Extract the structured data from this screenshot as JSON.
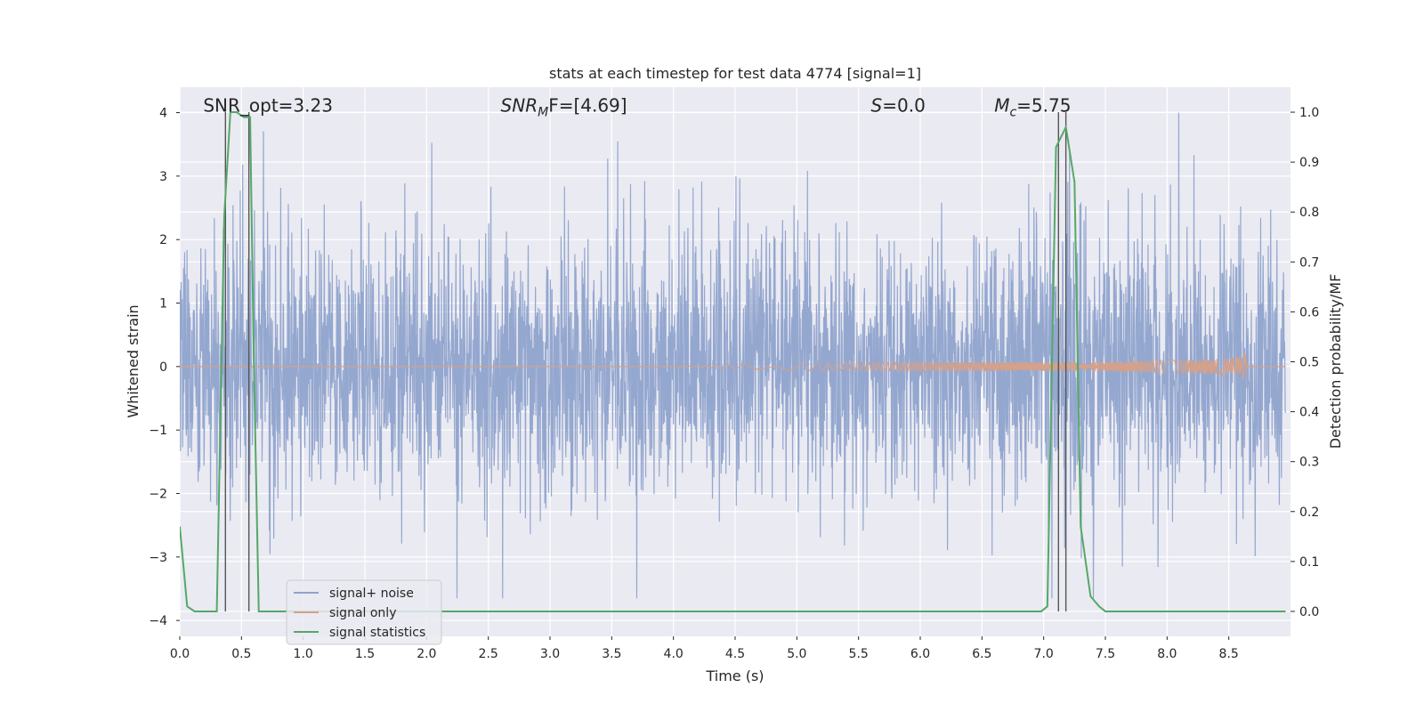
{
  "chart_data": {
    "type": "line",
    "title": "stats at each timestep for test data 4774 [signal=1]",
    "xlabel": "Time (s)",
    "ylabel": "Whitened strain",
    "y2label": "Detection probability/MF",
    "xlim": [
      0.0,
      9.0
    ],
    "ylim": [
      -4.25,
      4.4
    ],
    "y2lim": [
      -0.05,
      1.05
    ],
    "xticks": [
      0.0,
      0.5,
      1.0,
      1.5,
      2.0,
      2.5,
      3.0,
      3.5,
      4.0,
      4.5,
      5.0,
      5.5,
      6.0,
      6.5,
      7.0,
      7.5,
      8.0,
      8.5
    ],
    "xtick_labels": [
      "0.0",
      "0.5",
      "1.0",
      "1.5",
      "2.0",
      "2.5",
      "3.0",
      "3.5",
      "4.0",
      "4.5",
      "5.0",
      "5.5",
      "6.0",
      "6.5",
      "7.0",
      "7.5",
      "8.0",
      "8.5"
    ],
    "yticks": [
      -4,
      -3,
      -2,
      -1,
      0,
      1,
      2,
      3,
      4
    ],
    "ytick_labels": [
      "−4",
      "−3",
      "−2",
      "−1",
      "0",
      "1",
      "2",
      "3",
      "4"
    ],
    "y2ticks": [
      0.0,
      0.1,
      0.2,
      0.3,
      0.4,
      0.5,
      0.6,
      0.7,
      0.8,
      0.9,
      1.0
    ],
    "y2tick_labels": [
      "0.0",
      "0.1",
      "0.2",
      "0.3",
      "0.4",
      "0.5",
      "0.6",
      "0.7",
      "0.8",
      "0.9",
      "1.0"
    ],
    "grid": true,
    "legend_position": "lower-left",
    "series": [
      {
        "name": "signal+ noise",
        "color": "#8fa3cc",
        "axis": "left",
        "description_values": {
          "typical_range": [
            -1.8,
            1.8
          ],
          "peak_max": 4.0,
          "peak_min": -3.65
        }
      },
      {
        "name": "signal only",
        "color": "#d3a18c",
        "axis": "left",
        "chirp_start_x": 4.0,
        "chirp_peak_x": 8.65,
        "chirp_peak_amplitude": 0.35
      },
      {
        "name": "signal statistics",
        "color": "#55a868",
        "axis": "right",
        "x": [
          0.0,
          0.06,
          0.12,
          0.3,
          0.36,
          0.41,
          0.46,
          0.52,
          0.57,
          0.6,
          0.64,
          0.7,
          1.0,
          2.0,
          3.0,
          4.0,
          5.0,
          6.0,
          6.98,
          7.03,
          7.1,
          7.18,
          7.25,
          7.3,
          7.38,
          7.45,
          7.5,
          8.0,
          8.5,
          8.96
        ],
        "y": [
          0.17,
          0.01,
          0.0,
          0.0,
          0.79,
          1.0,
          1.0,
          0.99,
          0.99,
          0.5,
          0.0,
          0.0,
          0.0,
          0.0,
          0.0,
          0.0,
          0.0,
          0.0,
          0.0,
          0.01,
          0.93,
          0.97,
          0.86,
          0.17,
          0.03,
          0.01,
          0.0,
          0.0,
          0.0,
          0.0
        ]
      }
    ],
    "vertical_lines": [
      {
        "x": 0.37,
        "color": "#555555"
      },
      {
        "x": 0.56,
        "color": "#555555"
      },
      {
        "x": 7.12,
        "color": "#555555"
      },
      {
        "x": 7.18,
        "color": "#555555"
      }
    ],
    "annotations": [
      {
        "text": "SNR_opt=3.23",
        "x": 0.19,
        "y": 4.1
      },
      {
        "text": "SNR",
        "sub": "M",
        "tail": "F=[4.69]",
        "italic_main": true,
        "x": 2.6,
        "y": 4.1
      },
      {
        "text": "S",
        "tail": "=0.0",
        "italic_main": true,
        "x": 5.6,
        "y": 4.1
      },
      {
        "text": "M",
        "sub": "c",
        "tail": "=5.75",
        "italic_main": true,
        "x": 6.6,
        "y": 4.1
      }
    ]
  }
}
